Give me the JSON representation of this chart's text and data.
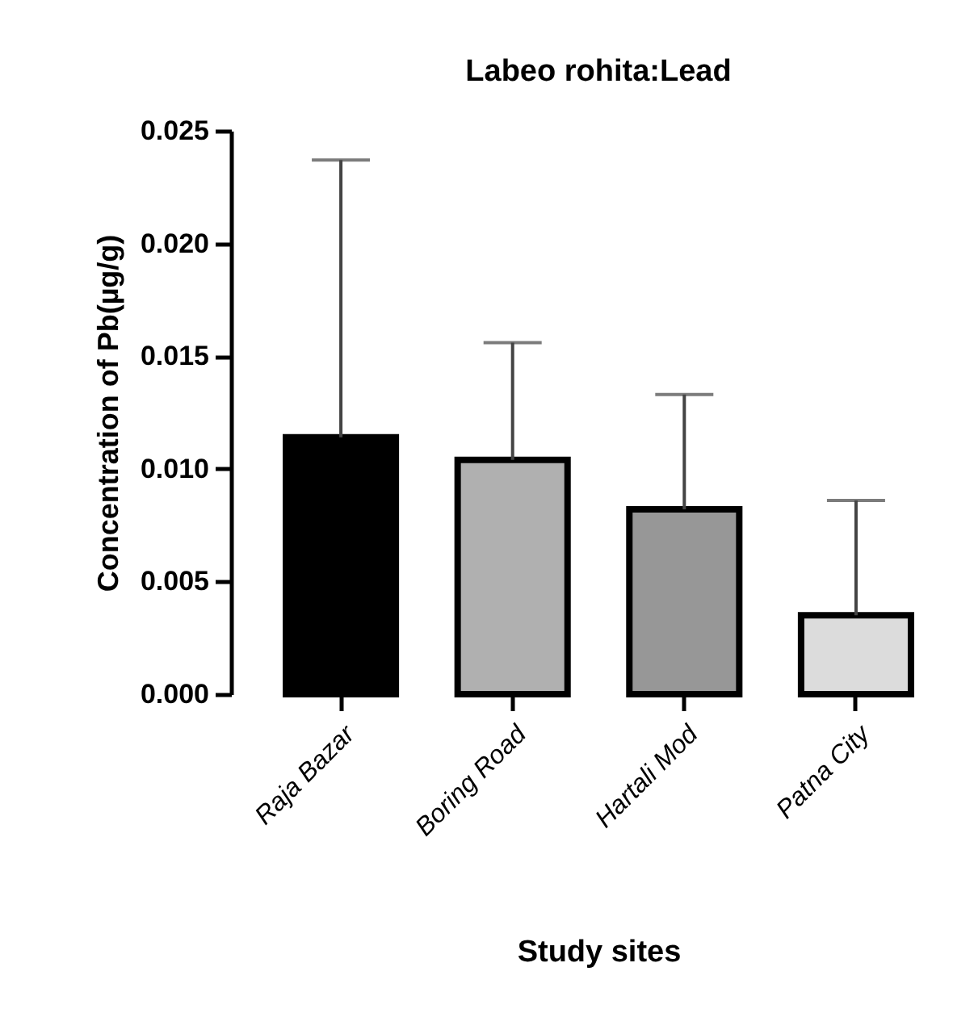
{
  "chart_data": {
    "type": "bar",
    "title": "Labeo rohita:Lead",
    "xlabel": "Study sites",
    "ylabel": "Concentration of Pb(µg/g)",
    "categories": [
      "Raja Bazar",
      "Boring Road",
      "Hartali Mod",
      "Patna City"
    ],
    "values": [
      0.0114,
      0.0104,
      0.0082,
      0.0035
    ],
    "colors": [
      "#000000",
      "#b0b0b0",
      "#979797",
      "#dcdcdc"
    ],
    "errors": [
      [
        0.0114,
        0.0237
      ],
      [
        0.0104,
        0.0156
      ],
      [
        0.0082,
        0.0133
      ],
      [
        0.0035,
        0.0086
      ]
    ],
    "ylim": [
      0,
      0.025
    ],
    "yticks": [
      {
        "value": 0,
        "label": "0.000"
      },
      0.005,
      {
        "value": 0.01,
        "label": "0.010"
      },
      0.015,
      {
        "value": 0.02,
        "label": "0.020"
      },
      0.025
    ],
    "grid": false
  }
}
